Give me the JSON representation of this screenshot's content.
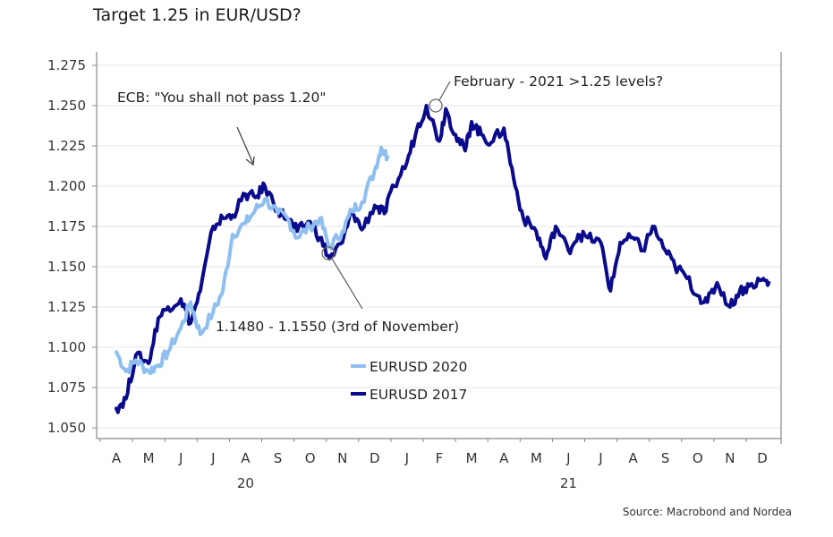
{
  "title": "Target 1.25 in EUR/USD?",
  "source": "Source: Macrobond and Nordea",
  "colors": {
    "eurusd_2020": "#8fbfef",
    "eurusd_2017": "#0a0a8c",
    "grid": "#e6e6e6",
    "axis": "#888888"
  },
  "annotations": {
    "ecb": "ECB: \"You shall not pass 1.20\"",
    "february": "February - 2021 >1.25 levels?",
    "november": "1.1480 - 1.1550 (3rd of November)"
  },
  "legend": [
    {
      "label": "EURUSD 2020",
      "color": "#8fbfef"
    },
    {
      "label": "EURUSD 2017",
      "color": "#0a0a8c"
    }
  ],
  "chart_data": {
    "type": "line",
    "title": "Target 1.25 in EUR/USD?",
    "xlabel": "",
    "ylabel": "",
    "ylim": [
      1.05,
      1.275
    ],
    "y_ticks": [
      "1.275",
      "1.250",
      "1.225",
      "1.200",
      "1.175",
      "1.150",
      "1.125",
      "1.100",
      "1.075",
      "1.050"
    ],
    "x_month_labels": [
      "A",
      "M",
      "J",
      "J",
      "A",
      "S",
      "O",
      "N",
      "D",
      "J",
      "F",
      "M",
      "A",
      "M",
      "J",
      "J",
      "A",
      "S",
      "O",
      "N",
      "D"
    ],
    "x_year_labels": [
      {
        "label": "20",
        "under": "A"
      },
      {
        "label": "21",
        "under": "J"
      }
    ],
    "grid": true,
    "legend_position": "inside-bottom-center",
    "series": [
      {
        "name": "EURUSD 2020",
        "x_month_index": [
          0,
          0.3,
          0.6,
          1,
          1.3,
          1.6,
          2,
          2.3,
          2.6,
          3,
          3.3,
          3.6,
          4,
          4.3,
          4.6,
          5,
          5.3,
          5.6,
          6,
          6.3,
          6.6,
          7,
          7.3,
          7.6,
          8,
          8.2,
          8.4
        ],
        "values": [
          1.097,
          1.085,
          1.092,
          1.085,
          1.089,
          1.097,
          1.112,
          1.128,
          1.108,
          1.122,
          1.135,
          1.17,
          1.177,
          1.185,
          1.192,
          1.183,
          1.18,
          1.168,
          1.175,
          1.18,
          1.162,
          1.172,
          1.185,
          1.19,
          1.21,
          1.224,
          1.218
        ]
      },
      {
        "name": "EURUSD 2017",
        "x_month_index": [
          0,
          0.3,
          0.6,
          1,
          1.3,
          1.6,
          2,
          2.3,
          2.6,
          3,
          3.3,
          3.6,
          4,
          4.3,
          4.6,
          5,
          5.3,
          5.6,
          6,
          6.3,
          6.6,
          7,
          7.3,
          7.6,
          8,
          8.3,
          8.6,
          9,
          9.3,
          9.6,
          10,
          10.2,
          10.5,
          10.8,
          11,
          11.3,
          11.6,
          12,
          12.3,
          12.6,
          13,
          13.3,
          13.6,
          14,
          14.3,
          14.6,
          15,
          15.3,
          15.6,
          16,
          16.3,
          16.6,
          17,
          17.3,
          17.6,
          18,
          18.3,
          18.6,
          19,
          19.3,
          19.6,
          20,
          20.2
        ],
        "values": [
          1.062,
          1.068,
          1.095,
          1.09,
          1.118,
          1.125,
          1.13,
          1.115,
          1.135,
          1.175,
          1.18,
          1.182,
          1.195,
          1.193,
          1.2,
          1.185,
          1.18,
          1.172,
          1.178,
          1.168,
          1.155,
          1.165,
          1.185,
          1.173,
          1.188,
          1.183,
          1.2,
          1.215,
          1.235,
          1.25,
          1.228,
          1.248,
          1.232,
          1.222,
          1.24,
          1.232,
          1.227,
          1.236,
          1.205,
          1.18,
          1.172,
          1.155,
          1.175,
          1.16,
          1.17,
          1.168,
          1.165,
          1.135,
          1.165,
          1.168,
          1.16,
          1.175,
          1.16,
          1.15,
          1.145,
          1.132,
          1.128,
          1.14,
          1.125,
          1.135,
          1.138,
          1.142,
          1.14
        ]
      }
    ],
    "annotations": [
      {
        "text": "ECB: \"You shall not pass 1.20\"",
        "points_to_month_index": 4.3,
        "value": 1.19
      },
      {
        "text": "February - 2021 >1.25 levels?",
        "points_to_month_index": 10.2,
        "value": 1.25
      },
      {
        "text": "1.1480 - 1.1550 (3rd of November)",
        "points_to_month_index": 7.3,
        "value": 1.157
      }
    ]
  }
}
